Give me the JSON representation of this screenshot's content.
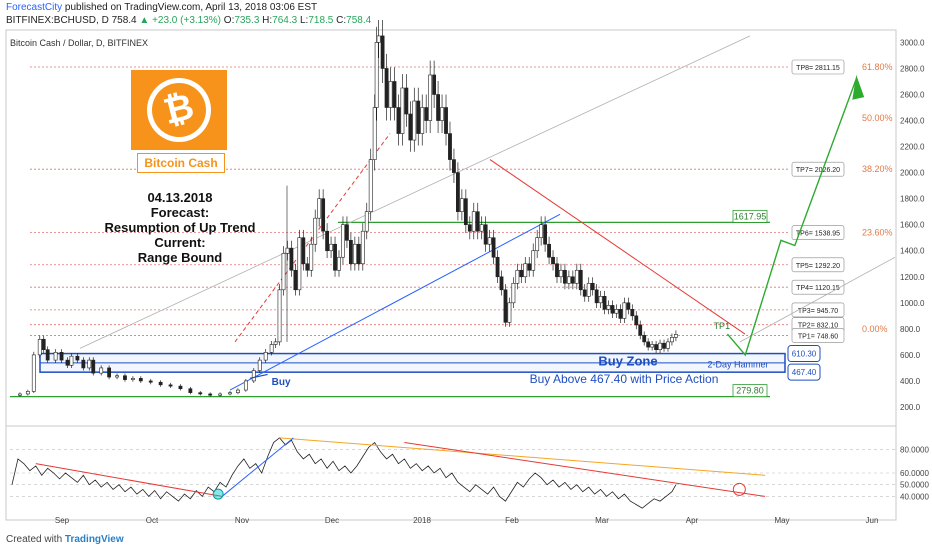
{
  "header": {
    "brand": "ForecastCity",
    "published": "published on TradingView.com, April 13, 2018 03:06 EST",
    "symbol": "BITFINEX:BCHUSD, D",
    "last": "758.4",
    "change": "▲ +23.0 (+3.13%)",
    "o_label": "O:",
    "o": "735.3",
    "h_label": "H:",
    "h": "764.3",
    "l_label": "L:",
    "l": "718.5",
    "c_label": "C:",
    "c": "758.4"
  },
  "pane_title": "Bitcoin Cash / Dollar, D, BITFINEX",
  "logo": {
    "glyph": "₿",
    "name": "Bitcoin Cash",
    "color": "#f7931a"
  },
  "forecast_text": [
    "04.13.2018",
    "Forecast:",
    "Resumption of Up Trend",
    "Current:",
    "Range Bound"
  ],
  "footer": {
    "created_with": "Created with",
    "brand": "TradingView"
  },
  "chart_data": {
    "type": "candlestick",
    "x_tick_labels": [
      "Sep",
      "Oct",
      "Nov",
      "Dec",
      "2018",
      "Feb",
      "Mar",
      "Apr",
      "May",
      "Jun"
    ],
    "price_axis": {
      "ticks": [
        200,
        400,
        600,
        800,
        1000,
        1200,
        1400,
        1600,
        1800,
        2000,
        2200,
        2400,
        2600,
        2800,
        3000
      ],
      "labels": [
        "200.0",
        "400.0",
        "600.0",
        "800.0",
        "1000.0",
        "1200.0",
        "1400.0",
        "1600.0",
        "1800.0",
        "2000.0",
        "2200.0",
        "2400.0",
        "2600.0",
        "2800.0",
        "3000.0"
      ],
      "range": [
        100,
        3080
      ]
    },
    "price_path": [
      [
        0,
        290
      ],
      [
        8,
        300
      ],
      [
        16,
        320
      ],
      [
        22,
        600
      ],
      [
        28,
        720
      ],
      [
        32,
        640
      ],
      [
        36,
        560
      ],
      [
        44,
        620
      ],
      [
        50,
        560
      ],
      [
        56,
        520
      ],
      [
        60,
        590
      ],
      [
        66,
        560
      ],
      [
        72,
        500
      ],
      [
        78,
        560
      ],
      [
        82,
        460
      ],
      [
        90,
        500
      ],
      [
        98,
        430
      ],
      [
        106,
        440
      ],
      [
        114,
        410
      ],
      [
        122,
        420
      ],
      [
        130,
        400
      ],
      [
        140,
        390
      ],
      [
        150,
        370
      ],
      [
        160,
        360
      ],
      [
        170,
        340
      ],
      [
        180,
        310
      ],
      [
        190,
        300
      ],
      [
        200,
        290
      ],
      [
        210,
        300
      ],
      [
        220,
        310
      ],
      [
        228,
        330
      ],
      [
        236,
        400
      ],
      [
        244,
        480
      ],
      [
        250,
        560
      ],
      [
        256,
        620
      ],
      [
        262,
        680
      ],
      [
        266,
        700
      ],
      [
        270,
        1100
      ],
      [
        274,
        1380
      ],
      [
        278,
        1420
      ],
      [
        282,
        1250
      ],
      [
        286,
        1100
      ],
      [
        290,
        1500
      ],
      [
        294,
        1300
      ],
      [
        298,
        1250
      ],
      [
        302,
        1450
      ],
      [
        306,
        1650
      ],
      [
        310,
        1800
      ],
      [
        314,
        1550
      ],
      [
        318,
        1400
      ],
      [
        322,
        1450
      ],
      [
        326,
        1250
      ],
      [
        330,
        1350
      ],
      [
        334,
        1600
      ],
      [
        338,
        1480
      ],
      [
        342,
        1300
      ],
      [
        346,
        1450
      ],
      [
        350,
        1300
      ],
      [
        354,
        1550
      ],
      [
        358,
        1700
      ],
      [
        362,
        2100
      ],
      [
        366,
        2500
      ],
      [
        368,
        3000
      ],
      [
        370,
        3050
      ],
      [
        374,
        2800
      ],
      [
        378,
        2500
      ],
      [
        382,
        2700
      ],
      [
        386,
        2500
      ],
      [
        390,
        2300
      ],
      [
        394,
        2650
      ],
      [
        398,
        2450
      ],
      [
        402,
        2250
      ],
      [
        406,
        2550
      ],
      [
        410,
        2300
      ],
      [
        414,
        2500
      ],
      [
        418,
        2400
      ],
      [
        422,
        2750
      ],
      [
        426,
        2600
      ],
      [
        430,
        2400
      ],
      [
        434,
        2500
      ],
      [
        438,
        2300
      ],
      [
        442,
        2100
      ],
      [
        446,
        2000
      ],
      [
        450,
        1700
      ],
      [
        454,
        1800
      ],
      [
        458,
        1600
      ],
      [
        462,
        1550
      ],
      [
        466,
        1700
      ],
      [
        470,
        1550
      ],
      [
        474,
        1600
      ],
      [
        478,
        1450
      ],
      [
        482,
        1500
      ],
      [
        486,
        1350
      ],
      [
        490,
        1200
      ],
      [
        494,
        1100
      ],
      [
        498,
        850
      ],
      [
        502,
        1000
      ],
      [
        506,
        1150
      ],
      [
        510,
        1250
      ],
      [
        514,
        1200
      ],
      [
        518,
        1300
      ],
      [
        522,
        1250
      ],
      [
        526,
        1400
      ],
      [
        530,
        1500
      ],
      [
        534,
        1600
      ],
      [
        538,
        1450
      ],
      [
        542,
        1350
      ],
      [
        546,
        1300
      ],
      [
        550,
        1200
      ],
      [
        554,
        1250
      ],
      [
        558,
        1150
      ],
      [
        562,
        1200
      ],
      [
        566,
        1150
      ],
      [
        570,
        1250
      ],
      [
        574,
        1100
      ],
      [
        578,
        1050
      ],
      [
        582,
        1150
      ],
      [
        586,
        1100
      ],
      [
        590,
        1000
      ],
      [
        594,
        1050
      ],
      [
        598,
        950
      ],
      [
        602,
        980
      ],
      [
        606,
        920
      ],
      [
        610,
        950
      ],
      [
        614,
        880
      ],
      [
        618,
        1000
      ],
      [
        622,
        950
      ],
      [
        626,
        900
      ],
      [
        630,
        830
      ],
      [
        634,
        750
      ],
      [
        638,
        700
      ],
      [
        642,
        660
      ],
      [
        646,
        680
      ],
      [
        650,
        640
      ],
      [
        654,
        690
      ],
      [
        658,
        650
      ],
      [
        662,
        700
      ],
      [
        666,
        735
      ],
      [
        670,
        758
      ]
    ],
    "levels": [
      {
        "label": "TP8= 2811.15",
        "value": 2811.15,
        "style": "dashed"
      },
      {
        "label": "TP7= 2026.20",
        "value": 2026.2,
        "style": "dashed"
      },
      {
        "label": "TP6= 1538.95",
        "value": 1538.95,
        "style": "dashed"
      },
      {
        "label": "TP5= 1292.20",
        "value": 1292.2,
        "style": "dashed"
      },
      {
        "label": "TP4= 1120.15",
        "value": 1120.15,
        "style": "dashed"
      },
      {
        "label": "TP3= 945.70",
        "value": 945.7,
        "style": "dashed"
      },
      {
        "label": "TP2= 832.10",
        "value": 832.1,
        "style": "dashed"
      },
      {
        "label": "TP1= 748.60",
        "value": 748.6,
        "style": "dashed"
      }
    ],
    "fib_labels": [
      {
        "label": "61.80%",
        "value": 2811.15
      },
      {
        "label": "50.00%",
        "value": 2420
      },
      {
        "label": "38.20%",
        "value": 2026.2
      },
      {
        "label": "23.60%",
        "value": 1538.95
      },
      {
        "label": "0.00%",
        "value": 800
      }
    ],
    "support_boxes": [
      {
        "label": "610.30",
        "value": 610.3
      },
      {
        "label": "467.40",
        "value": 467.4
      }
    ],
    "green_levels": [
      {
        "label": "1617.95",
        "value": 1617.95
      },
      {
        "label": "279.80",
        "value": 279.8
      }
    ],
    "annotations": {
      "buy_zone": "Buy Zone",
      "buy_above": "Buy Above 467.40 with Price Action",
      "hammer": "2-Day Hammer",
      "buy": "Buy",
      "tp1": "TP1"
    },
    "oscillator": {
      "ticks": [
        40,
        50,
        60,
        80
      ],
      "labels": [
        "40.0000",
        "50.0000",
        "60.0000",
        "80.0000"
      ],
      "range": [
        25,
        95
      ],
      "values": [
        [
          0,
          50
        ],
        [
          6,
          72
        ],
        [
          12,
          68
        ],
        [
          18,
          62
        ],
        [
          24,
          66
        ],
        [
          30,
          58
        ],
        [
          36,
          64
        ],
        [
          42,
          60
        ],
        [
          48,
          55
        ],
        [
          54,
          60
        ],
        [
          60,
          56
        ],
        [
          66,
          52
        ],
        [
          72,
          58
        ],
        [
          78,
          50
        ],
        [
          84,
          54
        ],
        [
          90,
          48
        ],
        [
          96,
          52
        ],
        [
          102,
          46
        ],
        [
          108,
          50
        ],
        [
          114,
          44
        ],
        [
          120,
          48
        ],
        [
          126,
          42
        ],
        [
          132,
          46
        ],
        [
          138,
          40
        ],
        [
          144,
          45
        ],
        [
          150,
          38
        ],
        [
          156,
          44
        ],
        [
          162,
          40
        ],
        [
          168,
          36
        ],
        [
          174,
          42
        ],
        [
          180,
          38
        ],
        [
          186,
          45
        ],
        [
          192,
          40
        ],
        [
          198,
          48
        ],
        [
          204,
          44
        ],
        [
          210,
          52
        ],
        [
          216,
          48
        ],
        [
          222,
          58
        ],
        [
          228,
          66
        ],
        [
          234,
          72
        ],
        [
          240,
          64
        ],
        [
          246,
          68
        ],
        [
          252,
          60
        ],
        [
          258,
          74
        ],
        [
          264,
          86
        ],
        [
          270,
          90
        ],
        [
          276,
          84
        ],
        [
          282,
          88
        ],
        [
          288,
          78
        ],
        [
          294,
          72
        ],
        [
          300,
          76
        ],
        [
          306,
          68
        ],
        [
          312,
          72
        ],
        [
          318,
          64
        ],
        [
          324,
          70
        ],
        [
          330,
          62
        ],
        [
          336,
          66
        ],
        [
          342,
          60
        ],
        [
          348,
          66
        ],
        [
          354,
          74
        ],
        [
          360,
          82
        ],
        [
          366,
          86
        ],
        [
          372,
          78
        ],
        [
          378,
          72
        ],
        [
          384,
          76
        ],
        [
          390,
          68
        ],
        [
          396,
          72
        ],
        [
          402,
          64
        ],
        [
          408,
          68
        ],
        [
          414,
          62
        ],
        [
          420,
          66
        ],
        [
          426,
          60
        ],
        [
          432,
          64
        ],
        [
          438,
          56
        ],
        [
          444,
          60
        ],
        [
          450,
          52
        ],
        [
          456,
          48
        ],
        [
          462,
          44
        ],
        [
          468,
          50
        ],
        [
          474,
          46
        ],
        [
          480,
          42
        ],
        [
          486,
          48
        ],
        [
          492,
          40
        ],
        [
          498,
          36
        ],
        [
          504,
          44
        ],
        [
          510,
          52
        ],
        [
          516,
          48
        ],
        [
          522,
          55
        ],
        [
          528,
          60
        ],
        [
          534,
          56
        ],
        [
          540,
          50
        ],
        [
          546,
          54
        ],
        [
          552,
          48
        ],
        [
          558,
          52
        ],
        [
          564,
          46
        ],
        [
          570,
          50
        ],
        [
          576,
          44
        ],
        [
          582,
          48
        ],
        [
          588,
          42
        ],
        [
          594,
          46
        ],
        [
          600,
          40
        ],
        [
          606,
          44
        ],
        [
          612,
          38
        ],
        [
          618,
          42
        ],
        [
          624,
          36
        ],
        [
          630,
          33
        ],
        [
          636,
          30
        ],
        [
          642,
          34
        ],
        [
          648,
          38
        ],
        [
          654,
          36
        ],
        [
          660,
          40
        ],
        [
          666,
          44
        ],
        [
          670,
          50
        ]
      ]
    }
  }
}
